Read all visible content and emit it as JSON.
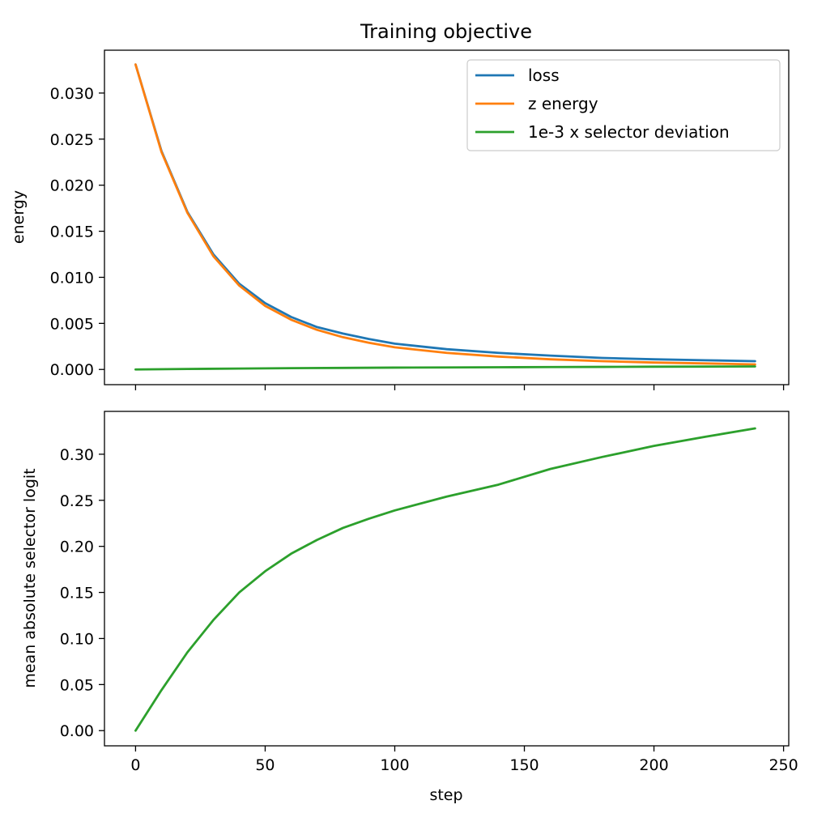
{
  "chart_data": [
    {
      "type": "line",
      "title": "Training objective",
      "xlabel": "",
      "ylabel": "energy",
      "xlim": [
        -12,
        252
      ],
      "ylim": [
        -0.00165,
        0.03465
      ],
      "xticks": [
        0,
        50,
        100,
        150,
        200,
        250
      ],
      "show_xtick_labels": false,
      "yticks": [
        0.0,
        0.005,
        0.01,
        0.015,
        0.02,
        0.025,
        0.03
      ],
      "ytick_labels": [
        "0.000",
        "0.005",
        "0.010",
        "0.015",
        "0.020",
        "0.025",
        "0.030"
      ],
      "grid": false,
      "legend_position": "top-right",
      "series": [
        {
          "name": "loss",
          "color": "#1f77b4",
          "x": [
            0,
            10,
            20,
            30,
            40,
            50,
            60,
            70,
            80,
            90,
            100,
            120,
            140,
            160,
            180,
            200,
            220,
            239
          ],
          "y": [
            0.0331,
            0.0237,
            0.0171,
            0.0125,
            0.0093,
            0.0072,
            0.0057,
            0.0046,
            0.0039,
            0.0033,
            0.0028,
            0.0022,
            0.0018,
            0.0015,
            0.00125,
            0.0011,
            0.001,
            0.0009
          ]
        },
        {
          "name": "z energy",
          "color": "#ff7f0e",
          "x": [
            0,
            10,
            20,
            30,
            40,
            50,
            60,
            70,
            80,
            90,
            100,
            120,
            140,
            160,
            180,
            200,
            220,
            239
          ],
          "y": [
            0.0331,
            0.0236,
            0.017,
            0.0123,
            0.0091,
            0.0069,
            0.0054,
            0.0043,
            0.0035,
            0.0029,
            0.0024,
            0.0018,
            0.0014,
            0.0011,
            0.0009,
            0.00075,
            0.00065,
            0.00055
          ]
        },
        {
          "name": "1e-3 x selector deviation",
          "color": "#2ca02c",
          "x": [
            0,
            20,
            40,
            60,
            80,
            100,
            120,
            140,
            160,
            180,
            200,
            220,
            239
          ],
          "y": [
            0.0,
            5e-05,
            0.0001,
            0.00014,
            0.00017,
            0.0002,
            0.00022,
            0.00024,
            0.00026,
            0.00028,
            0.0003,
            0.00031,
            0.00033
          ]
        }
      ]
    },
    {
      "type": "line",
      "title": "",
      "xlabel": "step",
      "ylabel": "mean absolute selector logit",
      "xlim": [
        -12,
        252
      ],
      "ylim": [
        -0.0165,
        0.3465
      ],
      "xticks": [
        0,
        50,
        100,
        150,
        200,
        250
      ],
      "xtick_labels": [
        "0",
        "50",
        "100",
        "150",
        "200",
        "250"
      ],
      "yticks": [
        0.0,
        0.05,
        0.1,
        0.15,
        0.2,
        0.25,
        0.3
      ],
      "ytick_labels": [
        "0.00",
        "0.05",
        "0.10",
        "0.15",
        "0.20",
        "0.25",
        "0.30"
      ],
      "grid": false,
      "series": [
        {
          "color": "#2ca02c",
          "x": [
            0,
            10,
            20,
            30,
            40,
            50,
            60,
            70,
            80,
            90,
            100,
            120,
            140,
            160,
            180,
            200,
            220,
            239
          ],
          "y": [
            0.0,
            0.044,
            0.085,
            0.12,
            0.15,
            0.173,
            0.192,
            0.207,
            0.22,
            0.23,
            0.239,
            0.254,
            0.267,
            0.284,
            0.297,
            0.309,
            0.319,
            0.328
          ]
        }
      ]
    }
  ]
}
